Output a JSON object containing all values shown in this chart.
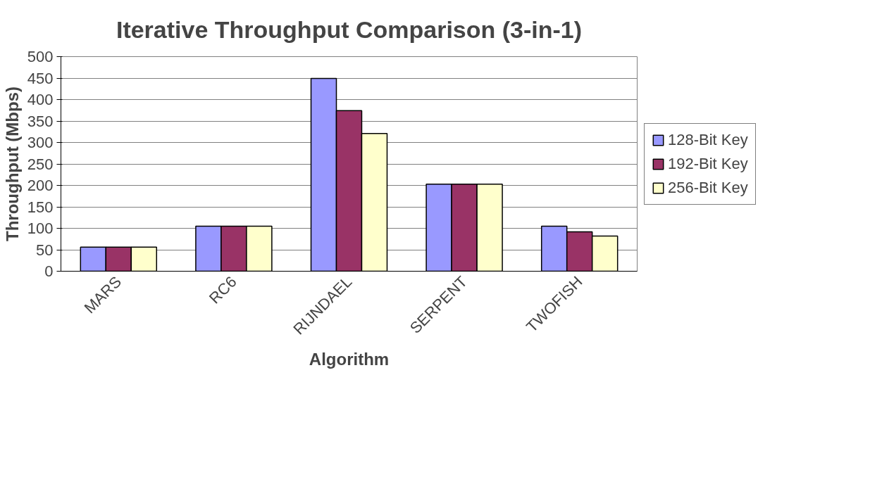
{
  "chart_data": {
    "type": "bar",
    "title": "Iterative Throughput Comparison (3-in-1)",
    "xlabel": "Algorithm",
    "ylabel": "Throughput (Mbps)",
    "categories": [
      "MARS",
      "RC6",
      "RIJNDAEL",
      "SERPENT",
      "TWOFISH"
    ],
    "series": [
      {
        "name": "128-Bit Key",
        "color": "#9999ff",
        "values": [
          56,
          105,
          449,
          203,
          105
        ]
      },
      {
        "name": "192-Bit Key",
        "color": "#993366",
        "values": [
          56,
          105,
          374,
          203,
          92
        ]
      },
      {
        "name": "256-Bit Key",
        "color": "#ffffcc",
        "values": [
          56,
          105,
          321,
          203,
          82
        ]
      }
    ],
    "ylim": [
      0,
      500
    ],
    "yticks": [
      0,
      50,
      100,
      150,
      200,
      250,
      300,
      350,
      400,
      450,
      500
    ],
    "grid": "y",
    "legend": "right"
  }
}
